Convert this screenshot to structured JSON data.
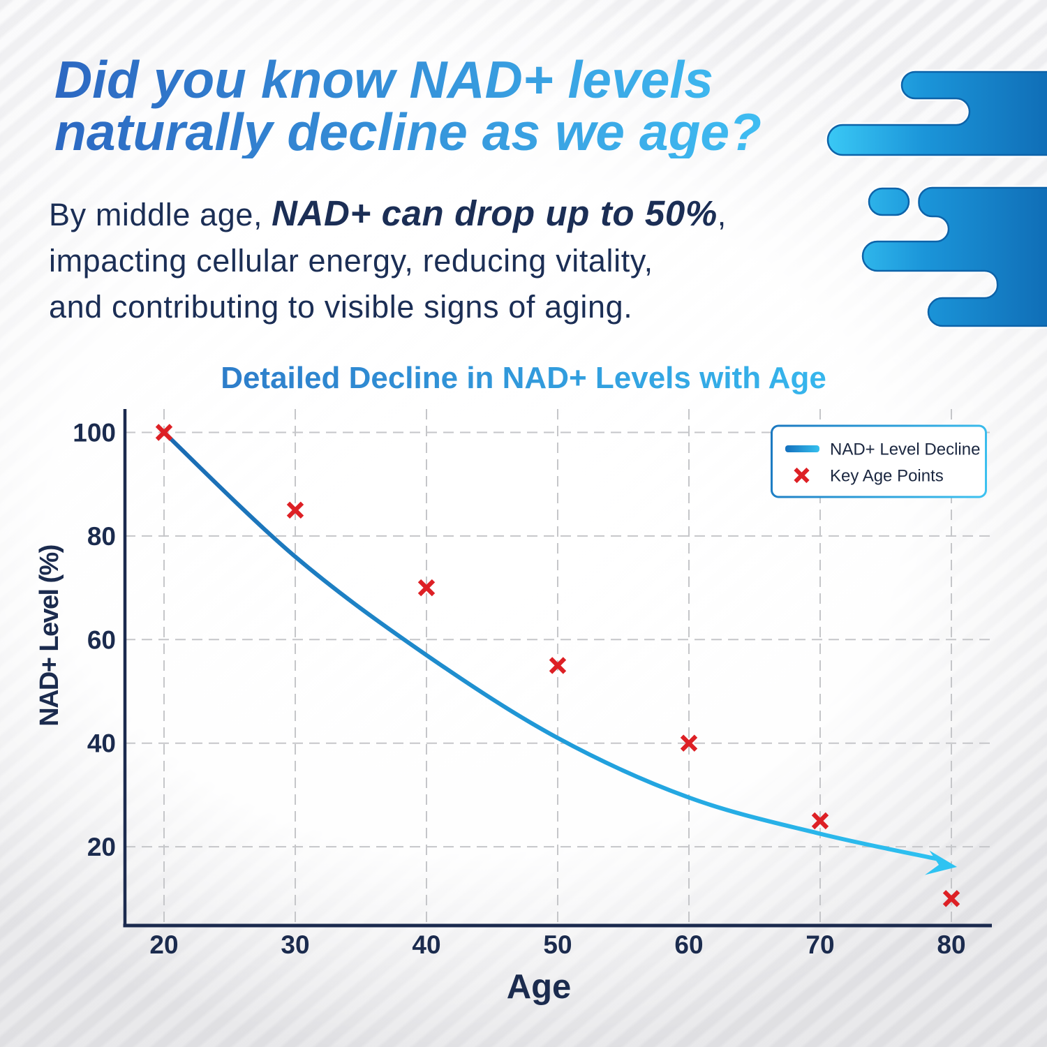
{
  "heading": {
    "line1": "Did you know NAD+ levels",
    "line2": "naturally decline as we age?",
    "gradient_start": "#2b66c0",
    "gradient_end": "#3cb9ee"
  },
  "intro": {
    "line1_pre": "By middle age, ",
    "line1_bold": "NAD+ can drop up to 50%",
    "line1_post": ",",
    "line2": "impacting cellular energy, reducing vitality,",
    "line3": "and contributing to visible signs of aging.",
    "text_color": "#1b2e55"
  },
  "chart_data": {
    "type": "line",
    "title": "Detailed Decline in NAD+ Levels with Age",
    "xlabel": "Age",
    "ylabel": "NAD+ Level (%)",
    "xticks": [
      20,
      30,
      40,
      50,
      60,
      70,
      80
    ],
    "yticks": [
      20,
      40,
      60,
      80,
      100
    ],
    "xlim": [
      17,
      83.3
    ],
    "ylim": [
      4.8,
      104.5
    ],
    "grid": true,
    "legend_position": "upper right",
    "series": [
      {
        "name": "NAD+ Level Decline",
        "type": "line",
        "color_start": "#1a6ab2",
        "color_end": "#2fc3f2",
        "arrow": true,
        "x": [
          20,
          30,
          40,
          50,
          60,
          70,
          79
        ],
        "y": [
          100,
          76,
          57,
          41,
          29.5,
          22.5,
          17.6
        ]
      },
      {
        "name": "Key Age Points",
        "type": "scatter",
        "marker": "x",
        "color": "#dd2025",
        "x": [
          20,
          30,
          40,
          50,
          60,
          70,
          80
        ],
        "y": [
          100,
          85,
          70,
          55,
          40,
          25,
          10
        ]
      }
    ],
    "legend": [
      {
        "label": "NAD+ Level Decline",
        "swatch": "line"
      },
      {
        "label": "Key Age Points",
        "swatch": "x"
      }
    ]
  },
  "colors": {
    "axis": "#1b2a4e",
    "tick_label": "#1b2b4e",
    "grid": "#c5c6c9",
    "title_gradient_start": "#2d7dca",
    "title_gradient_end": "#36b6ed",
    "legend_border_start": "#1b78c0",
    "legend_border_end": "#3dc2f0",
    "legend_text": "#1b2740",
    "marker_red": "#dd2025",
    "splash_start": "#3ac8f5",
    "splash_mid": "#1b95d9",
    "splash_end": "#0f6bb4"
  }
}
